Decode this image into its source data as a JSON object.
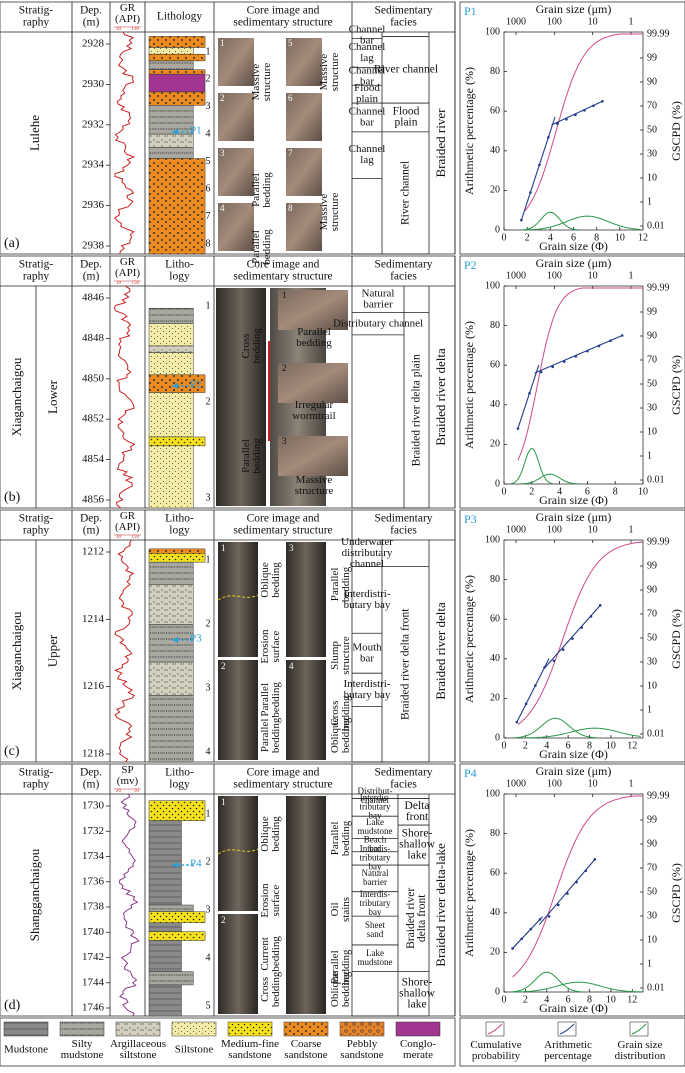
{
  "figure_title": "",
  "strat_header": "Stratig-\nraphy",
  "depth_header": "Dep.\n(m)",
  "lith_header": "Lithology",
  "lith_header_short": "Litho-\nlogy",
  "core_header": "Core image and\nsedimentary structure",
  "facies_header": "Sedimentary\nfacies",
  "panels": [
    {
      "letter": "(a)",
      "formation": "Lulehe",
      "member": "",
      "log_label": "GR\n(API)",
      "log_range": [
        "30",
        "130"
      ],
      "depths": [
        "2928",
        "2930",
        "2932",
        "2934",
        "2936",
        "2938"
      ],
      "structures": [
        "Massive\nstructure",
        "Massive\nstructure",
        "Parallel\nbedding",
        "Parallel\nbedding",
        "Massive\nstructure"
      ],
      "facies_micro": [
        "Channel\nbar",
        "Channel\nlag",
        "Channel\nbar",
        "Flood\nplain",
        "Channel\nbar",
        "Channel\nlag"
      ],
      "facies_sub": [
        "River channel",
        "Flood\nplain",
        "River channel"
      ],
      "facies_main": "Braided river",
      "core_nums": [
        "1",
        "2",
        "3",
        "4",
        "5",
        "6",
        "7",
        "8"
      ],
      "sample": "P1"
    },
    {
      "letter": "(b)",
      "formation": "Xiaganchaigou",
      "member": "Lower",
      "log_label": "GR\n(API)",
      "log_range": [
        "10",
        "150"
      ],
      "depths": [
        "4846",
        "4848",
        "4850",
        "4852",
        "4854",
        "4856"
      ],
      "structures": [
        "Cross\nbedding",
        "Parallel\nbedding",
        "Parallel\nbedding",
        "Irregular\nwormtrail",
        "Massive\nstructure"
      ],
      "facies_micro": [
        "Natural\nbarrier",
        "Distributary channel"
      ],
      "facies_sub": [
        "Braided river delta plain"
      ],
      "facies_main": "Braided river delta",
      "core_nums": [
        "1",
        "2",
        "3",
        "1",
        "2",
        "3"
      ],
      "sample": "P2"
    },
    {
      "letter": "(c)",
      "formation": "Xiaganchaigou",
      "member": "Upper",
      "log_label": "GR\n(API)",
      "log_range": [
        "30",
        "150"
      ],
      "depths": [
        "1212",
        "1214",
        "1216",
        "1218"
      ],
      "structures": [
        "Oblique\nbedding",
        "Erosion\nsurface",
        "Parallel\nbedding",
        "Parallel\nbedding",
        "Parallel\nbedding",
        "Slump\nstructure",
        "Cross\nbedding",
        "Oblique\nbedding"
      ],
      "facies_micro": [
        "Underwater\ndistributary\nchannel",
        "Interdistri-\nbutary bay",
        "Mouth\nbar",
        "Interdistri-\nbutary bay"
      ],
      "facies_sub": [
        "Braided river delta front"
      ],
      "facies_main": "Braided river delta",
      "core_nums": [
        "1",
        "2",
        "3",
        "4",
        "1",
        "2",
        "3",
        "4"
      ],
      "sample": "P3"
    },
    {
      "letter": "(d)",
      "formation": "Shangganchaigou",
      "member": "",
      "log_label": "SP\n(mv)",
      "log_range": [
        "20",
        "50"
      ],
      "depths": [
        "1730",
        "1732",
        "1734",
        "1736",
        "1738",
        "1740",
        "1742",
        "1744",
        "1746"
      ],
      "structures": [
        "Oblique\nbedding",
        "Erosion\nsurface",
        "Current\nbedding",
        "Cross\nbedding",
        "Parallel\nbedding",
        "Oil\nstains",
        "Parallel\nbedding",
        "Oblique\nbedding"
      ],
      "facies_micro": [
        "Distribut-\nchannel",
        "Interdis-\ntributary\nbay",
        "Lake\nmudstone",
        "Beach\nbar",
        "Interdis-\ntributary\nbay",
        "Natural\nbarrier",
        "Interdis-\ntributary\nbay",
        "Sheet\nsand",
        "Lake\nmudstone"
      ],
      "facies_sub": [
        "Delta\nfront",
        "Shore-\nshallow\nlake",
        "Braided river\ndelta front",
        "Shore-\nshallow\nlake"
      ],
      "facies_main": "Braided river delta-lake",
      "core_nums": [
        "1",
        "2",
        "3",
        "4",
        "5",
        "1",
        "2",
        "3",
        "4",
        "5"
      ],
      "sample": "P4"
    }
  ],
  "grain_chart": {
    "top_axis_label": "Grain size (μm)",
    "bottom_axis_label": "Grain size (Φ)",
    "left_axis_label": "Arithmetic percentage (%)",
    "right_axis_label": "GSCPD (%)",
    "top_ticks": [
      "1000",
      "100",
      "10",
      "1"
    ],
    "left_ticks": [
      "0",
      "20",
      "40",
      "60",
      "80",
      "100"
    ],
    "right_ticks": [
      "0.01",
      "1",
      "10",
      "30",
      "50",
      "70",
      "90",
      "99",
      "99.99"
    ]
  },
  "chart_data": [
    {
      "type": "line",
      "sample": "P1",
      "x_ticks": [
        "0",
        "2",
        "4",
        "6",
        "8",
        "10",
        "12"
      ],
      "xlim": [
        0,
        12
      ],
      "ylim": [
        0,
        100
      ]
    },
    {
      "type": "line",
      "sample": "P2",
      "x_ticks": [
        "0",
        "2",
        "4",
        "6",
        "8",
        "10"
      ],
      "xlim": [
        0,
        10
      ],
      "ylim": [
        0,
        100
      ]
    },
    {
      "type": "line",
      "sample": "P3",
      "x_ticks": [
        "0",
        "2",
        "4",
        "6",
        "8",
        "10",
        "12"
      ],
      "xlim": [
        0,
        13
      ],
      "ylim": [
        0,
        100
      ]
    },
    {
      "type": "line",
      "sample": "P4",
      "x_ticks": [
        "0",
        "2",
        "4",
        "6",
        "8",
        "10",
        "12"
      ],
      "xlim": [
        0,
        13
      ],
      "ylim": [
        0,
        100
      ]
    }
  ],
  "legend": {
    "lithology": [
      "Mudstone",
      "Silty\nmudstone",
      "Argillaceous\nsiltstone",
      "Siltstone",
      "Medium-fine\nsandstone",
      "Coarse\nsandstone",
      "Pebbly\nsandstone",
      "Conglo-\nmerate"
    ],
    "curves": [
      "Cumulative\nprobability",
      "Arithmetic\npercentage",
      "Grain size\ndistribution"
    ]
  }
}
